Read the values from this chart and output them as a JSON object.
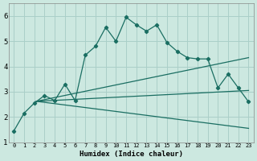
{
  "xlabel": "Humidex (Indice chaleur)",
  "background_color": "#cce8e0",
  "grid_color": "#aacfc8",
  "line_color": "#1a6e62",
  "xlim": [
    -0.5,
    23.5
  ],
  "ylim": [
    1.0,
    6.5
  ],
  "yticks": [
    1,
    2,
    3,
    4,
    5,
    6
  ],
  "lines": [
    {
      "x": [
        0,
        1,
        2,
        3,
        4,
        5,
        6,
        7,
        8,
        9,
        10,
        11,
        12,
        13,
        14,
        15,
        16,
        17,
        18,
        19,
        20,
        21,
        22,
        23
      ],
      "y": [
        1.45,
        2.15,
        2.55,
        2.85,
        2.65,
        3.3,
        2.65,
        4.45,
        4.8,
        5.55,
        5.0,
        5.95,
        5.65,
        5.4,
        5.65,
        4.95,
        4.6,
        4.35,
        4.3,
        4.3,
        3.15,
        3.7,
        3.15,
        2.6
      ],
      "marker": true
    },
    {
      "x": [
        2.2,
        23
      ],
      "y": [
        2.62,
        4.35
      ],
      "marker": false
    },
    {
      "x": [
        2.2,
        23
      ],
      "y": [
        2.62,
        3.05
      ],
      "marker": false
    },
    {
      "x": [
        2.2,
        23
      ],
      "y": [
        2.62,
        1.55
      ],
      "marker": false
    }
  ]
}
